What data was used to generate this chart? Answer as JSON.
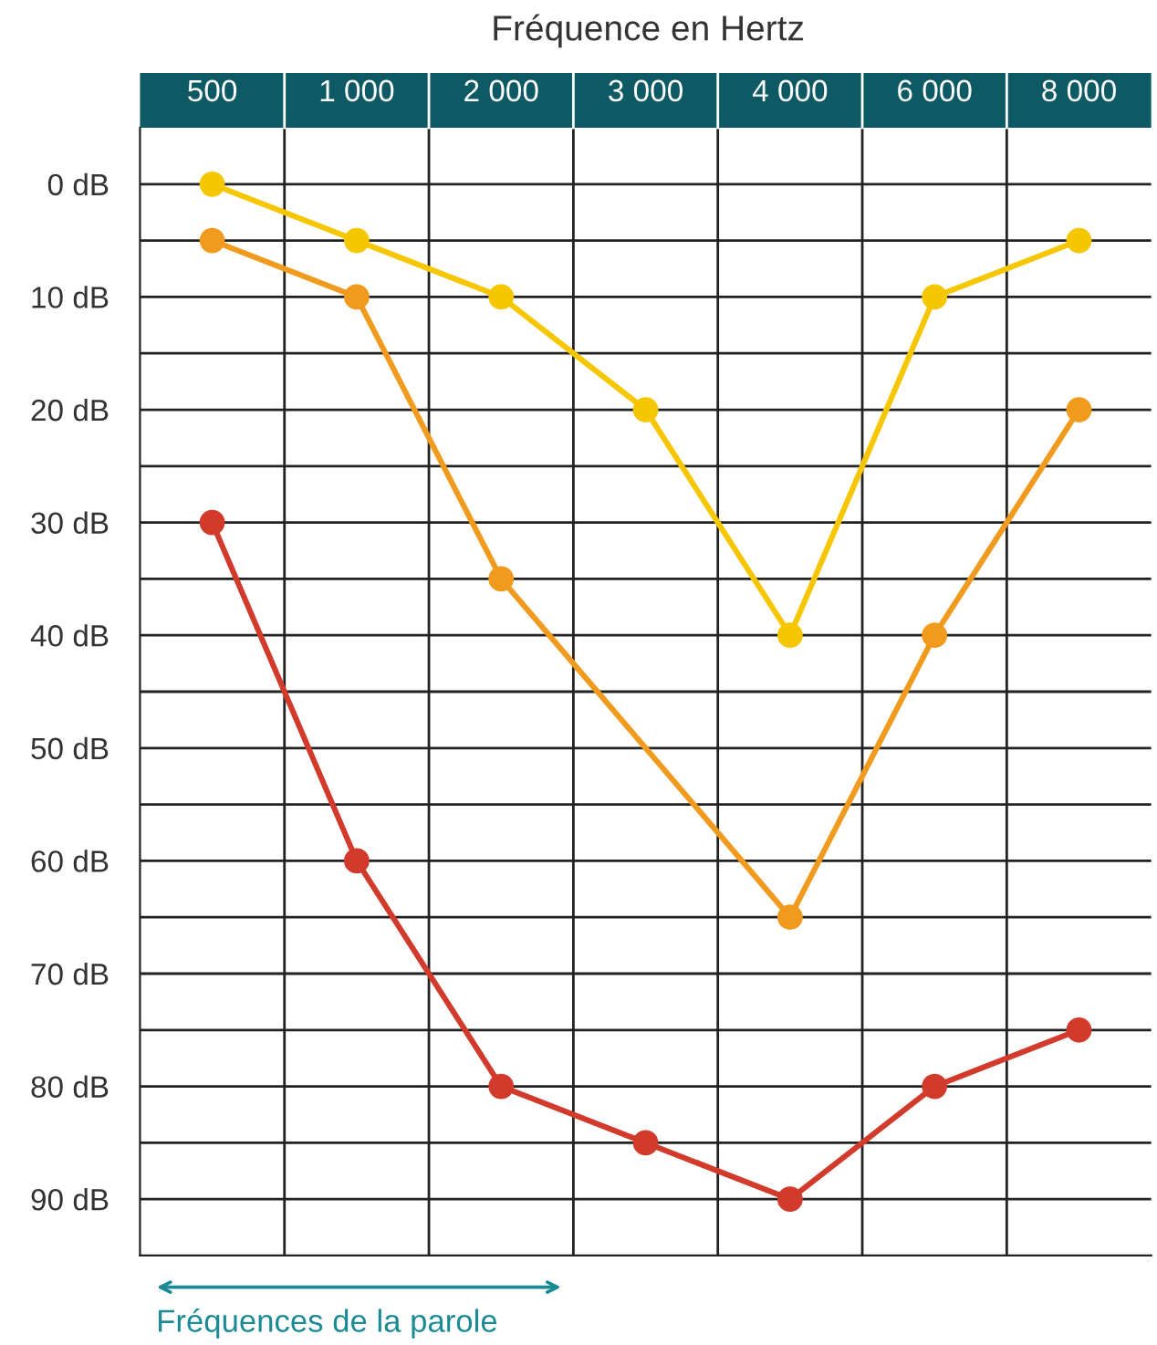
{
  "chart_data": {
    "type": "line",
    "title": "Fréquence en Hertz",
    "categories": [
      "500",
      "1 000",
      "2 000",
      "3 000",
      "4 000",
      "6 000",
      "8 000"
    ],
    "series": [
      {
        "color": "#f6c700",
        "values": [
          0,
          5,
          10,
          20,
          40,
          10,
          5
        ]
      },
      {
        "color": "#f09a1e",
        "values": [
          5,
          10,
          35,
          null,
          65,
          40,
          20
        ]
      },
      {
        "color": "#d23a2c",
        "values": [
          30,
          60,
          80,
          85,
          90,
          80,
          75
        ]
      }
    ],
    "ylim": [
      95,
      -5
    ],
    "yticks": [
      {
        "value": 0,
        "label": "0 dB"
      },
      {
        "value": 5,
        "label": null
      },
      {
        "value": 10,
        "label": "10 dB"
      },
      {
        "value": 15,
        "label": null
      },
      {
        "value": 20,
        "label": "20 dB"
      },
      {
        "value": 25,
        "label": null
      },
      {
        "value": 30,
        "label": "30 dB"
      },
      {
        "value": 35,
        "label": null
      },
      {
        "value": 40,
        "label": "40 dB"
      },
      {
        "value": 45,
        "label": null
      },
      {
        "value": 50,
        "label": "50 dB"
      },
      {
        "value": 55,
        "label": null
      },
      {
        "value": 60,
        "label": "60 dB"
      },
      {
        "value": 65,
        "label": null
      },
      {
        "value": 70,
        "label": "70 dB"
      },
      {
        "value": 75,
        "label": null
      },
      {
        "value": 80,
        "label": "80 dB"
      },
      {
        "value": 85,
        "label": null
      },
      {
        "value": 90,
        "label": "90 dB"
      }
    ],
    "grid": true,
    "marker": "circle",
    "line_style": "solid",
    "annotations": [
      "Fréquences de la parole"
    ]
  }
}
